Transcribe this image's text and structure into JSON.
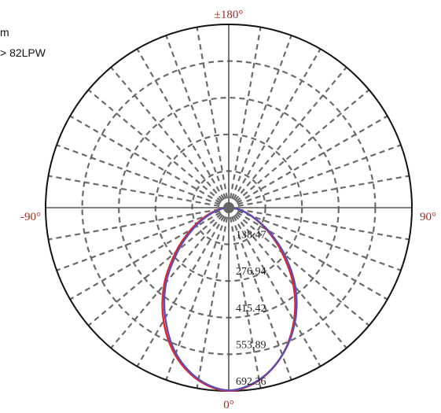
{
  "chart_data": {
    "type": "line",
    "subtype": "polar",
    "legend": {
      "lines": [
        "m",
        "> 82LPW"
      ]
    },
    "angle_labels": [
      {
        "key": "top",
        "text": "±180°"
      },
      {
        "key": "left",
        "text": "-90°"
      },
      {
        "key": "right",
        "text": "90°"
      },
      {
        "key": "bottom",
        "text": "0°"
      }
    ],
    "radial_ticks": [
      138.47,
      276.94,
      415.42,
      553.89,
      692.36
    ],
    "radial_tick_labels": [
      "138.47",
      "276.94",
      "415.42",
      "553.89",
      "692.36"
    ],
    "r_max": 692.36,
    "grid": true,
    "series": [
      {
        "color": "#e8262a",
        "angles_deg": [
          -90,
          -80,
          -70,
          -60,
          -50,
          -40,
          -30,
          -20,
          -10,
          0,
          10,
          20,
          30,
          40,
          50,
          60,
          70,
          80,
          90
        ],
        "values": [
          0,
          38,
          90,
          165,
          262,
          380,
          493,
          592,
          662,
          692,
          662,
          592,
          493,
          380,
          262,
          165,
          90,
          38,
          0
        ]
      },
      {
        "color": "#5b4fb0",
        "angles_deg": [
          -90,
          -80,
          -70,
          -60,
          -50,
          -40,
          -30,
          -20,
          -10,
          0,
          10,
          20,
          30,
          40,
          50,
          60,
          70,
          80,
          90
        ],
        "values": [
          0,
          32,
          80,
          152,
          248,
          368,
          480,
          585,
          658,
          690,
          660,
          592,
          500,
          392,
          275,
          172,
          92,
          40,
          0
        ]
      }
    ]
  }
}
